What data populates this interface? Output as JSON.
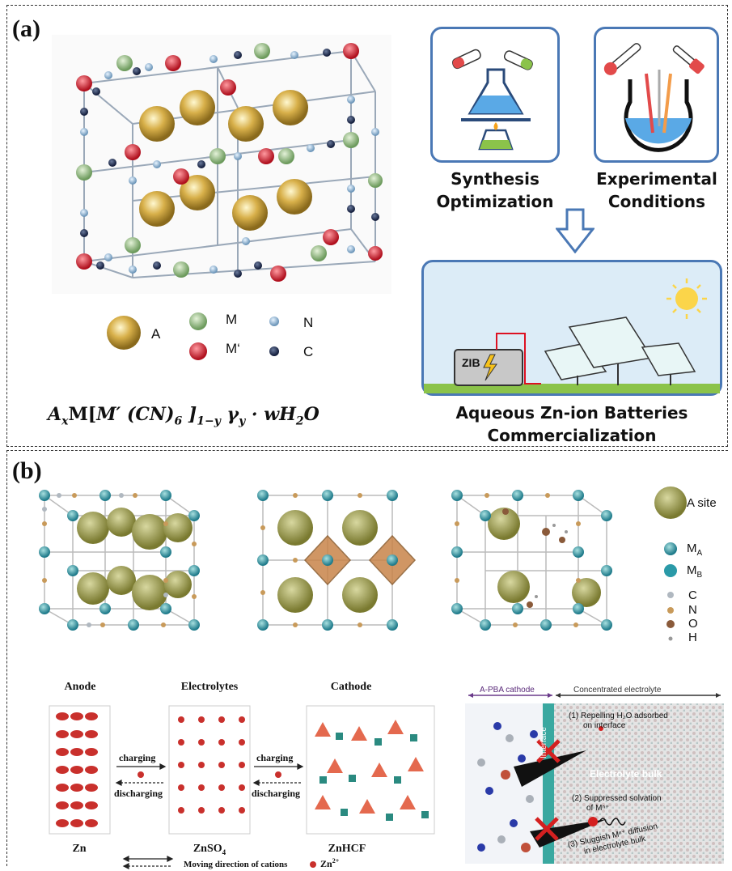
{
  "panel_a": {
    "label": "(a)",
    "legend": {
      "A": "A",
      "M": "M",
      "M_prime": "M‘",
      "N": "N",
      "C": "C"
    },
    "formula": {
      "base": "A",
      "x": "x",
      "m": "M[",
      "mp": "M′ (CN)",
      "six": "6",
      "close": " ]",
      "sub1": "1−y",
      "gamma": " γ",
      "y": "y",
      "water": " · wH",
      "two": "2",
      "o": "O"
    },
    "synthesis_caption": [
      "Synthesis",
      "Optimization"
    ],
    "experimental_caption": [
      "Experimental",
      "Conditions"
    ],
    "zib_label": "ZIB",
    "bottom_caption": [
      "Aqueous Zn-ion Batteries",
      "Commercialization"
    ]
  },
  "panel_b": {
    "label": "(b)",
    "legend": {
      "a_site": "A site",
      "ma": "M",
      "ma_sub": "A",
      "mb": "M",
      "mb_sub": "B",
      "c": "C",
      "n": "N",
      "o": "O",
      "h": "H"
    },
    "mechanism": {
      "anode": "Anode",
      "electrolytes": "Electrolytes",
      "cathode": "Cathode",
      "charging1": "charging",
      "discharging1": "discharging",
      "charging2": "charging",
      "discharging2": "discharging",
      "zn": "Zn",
      "znso4": "ZnSO",
      "znso4_sub": "4",
      "znhcf": "ZnHCF",
      "moving": "Moving direction of cations",
      "zn2": "Zn",
      "zn2_sup": "2+"
    },
    "interface": {
      "cathode_label": "A-PBA cathode",
      "electrolyte_label": "Concentrated electrolyte",
      "interface_label": "Interface",
      "bulk_label": "Electrolyte bulk",
      "step1": [
        "(1) Repelling H₂O  adsorbed",
        "on interface"
      ],
      "step2": [
        "(2) Suppressed solvation",
        "of Mⁿ⁺"
      ],
      "step3": [
        "(3) Sluggish Mⁿ⁺ diffusion",
        "in electrolyte bulk"
      ]
    }
  }
}
